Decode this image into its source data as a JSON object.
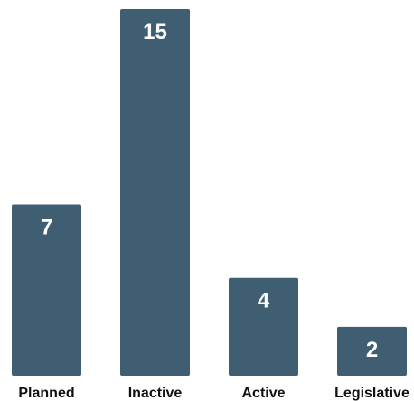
{
  "chart_data": {
    "type": "bar",
    "categories": [
      "Planned",
      "Inactive",
      "Active",
      "Legislative"
    ],
    "values": [
      7,
      15,
      4,
      2
    ],
    "title": "",
    "xlabel": "",
    "ylabel": "",
    "ylim": [
      0,
      15
    ],
    "grid": false,
    "data_labels": true,
    "bar_color": "#3f5e72",
    "value_label_color": "#ffffff",
    "category_label_color": "#111111"
  }
}
